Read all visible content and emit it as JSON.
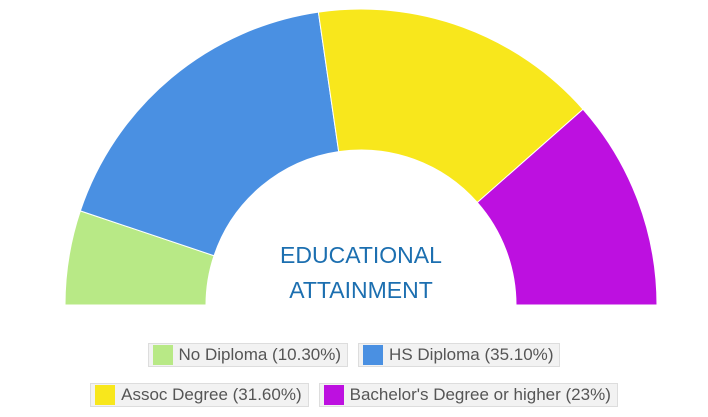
{
  "chart_data": {
    "type": "semi-donut",
    "title_lines": [
      "EDUCATIONAL",
      "ATTAINMENT"
    ],
    "categories": [
      "No Diploma",
      "HS Diploma",
      "Assoc Degree",
      "Bachelor's Degree or higher"
    ],
    "values": [
      10.3,
      35.1,
      31.6,
      23
    ],
    "value_labels": [
      "10.30%",
      "35.10%",
      "31.60%",
      "23%"
    ],
    "colors": [
      "#b8e986",
      "#4a90e2",
      "#f8e71c",
      "#bd10e0"
    ]
  }
}
